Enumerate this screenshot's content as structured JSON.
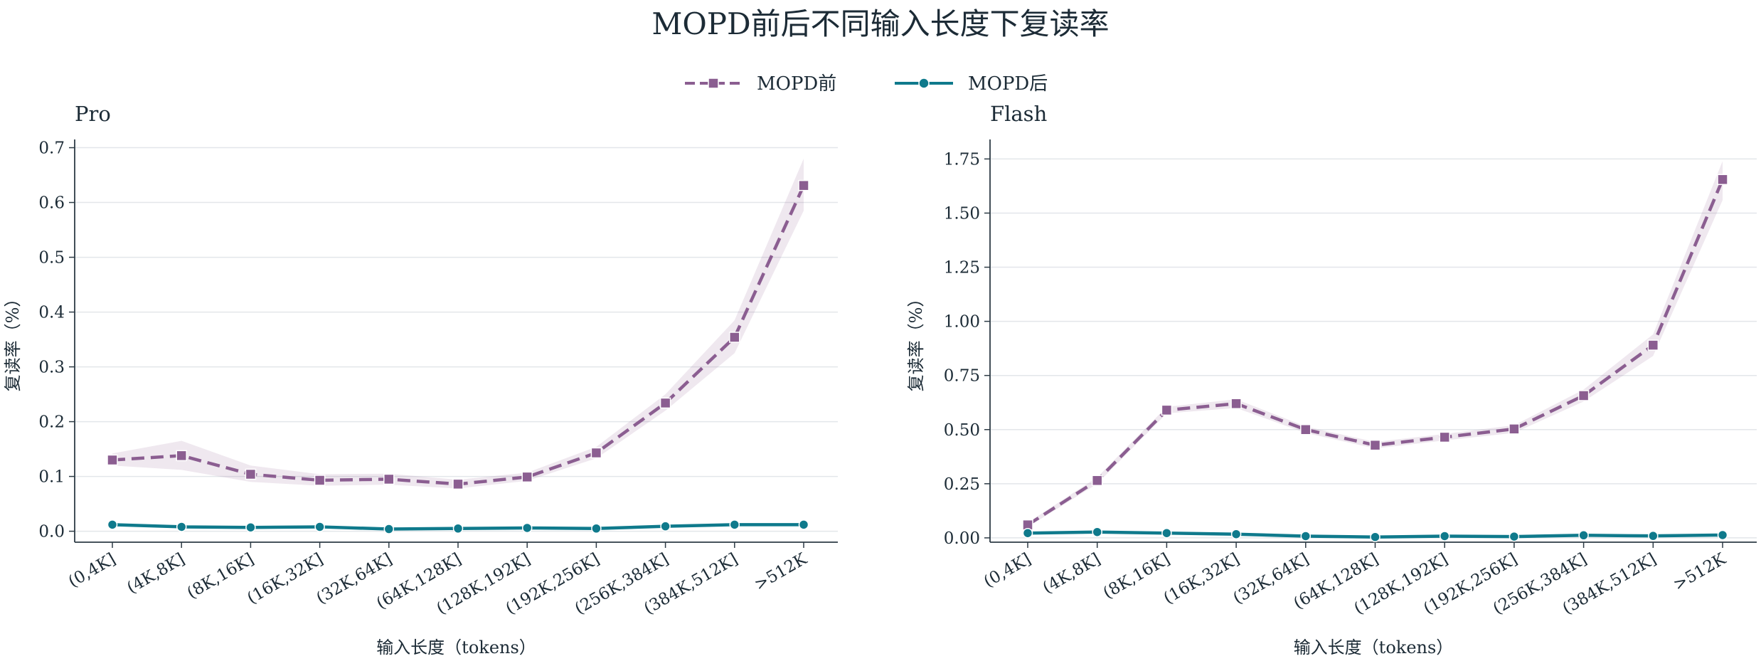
{
  "title": "MOPD前后不同输入长度下复读率",
  "legend": [
    {
      "label": "MOPD前",
      "color": "#8b5e91",
      "marker": "square",
      "dash": true
    },
    {
      "label": "MOPD后",
      "color": "#0f7a8c",
      "marker": "circle",
      "dash": false
    }
  ],
  "chart_data": [
    {
      "type": "line",
      "title": "Pro",
      "xlabel": "输入长度（tokens）",
      "ylabel": "复读率（%）",
      "categories": [
        "(0,4K]",
        "(4K,8K]",
        "(8K,16K]",
        "(16K,32K]",
        "(32K,64K]",
        "(64K,128K]",
        "(128K,192K]",
        "(192K,256K]",
        "(256K,384K]",
        "(384K,512K]",
        ">512K"
      ],
      "ylim": [
        -0.02,
        0.715
      ],
      "yticks": [
        0.0,
        0.1,
        0.2,
        0.3,
        0.4,
        0.5,
        0.6,
        0.7
      ],
      "ytick_labels": [
        "0.0",
        "0.1",
        "0.2",
        "0.3",
        "0.4",
        "0.5",
        "0.6",
        "0.7"
      ],
      "grid": "horizontal",
      "series": [
        {
          "name": "MOPD前",
          "values": [
            0.13,
            0.138,
            0.104,
            0.093,
            0.095,
            0.086,
            0.099,
            0.143,
            0.234,
            0.354,
            0.631
          ],
          "band_low": [
            0.12,
            0.112,
            0.09,
            0.083,
            0.085,
            0.078,
            0.092,
            0.133,
            0.22,
            0.325,
            0.585
          ],
          "band_high": [
            0.142,
            0.165,
            0.12,
            0.104,
            0.105,
            0.094,
            0.107,
            0.154,
            0.25,
            0.385,
            0.68
          ]
        },
        {
          "name": "MOPD后",
          "values": [
            0.012,
            0.008,
            0.007,
            0.008,
            0.004,
            0.005,
            0.006,
            0.005,
            0.009,
            0.012,
            0.012
          ]
        }
      ]
    },
    {
      "type": "line",
      "title": "Flash",
      "xlabel": "输入长度（tokens）",
      "ylabel": "复读率（%）",
      "categories": [
        "(0,4K]",
        "(4K,8K]",
        "(8K,16K]",
        "(16K,32K]",
        "(32K,64K]",
        "(64K,128K]",
        "(128K,192K]",
        "(192K,256K]",
        "(256K,384K]",
        "(384K,512K]",
        ">512K"
      ],
      "ylim": [
        -0.02,
        1.84
      ],
      "yticks": [
        0.0,
        0.25,
        0.5,
        0.75,
        1.0,
        1.25,
        1.5,
        1.75
      ],
      "ytick_labels": [
        "0.00",
        "0.25",
        "0.50",
        "0.75",
        "1.00",
        "1.25",
        "1.50",
        "1.75"
      ],
      "grid": "horizontal",
      "series": [
        {
          "name": "MOPD前",
          "values": [
            0.06,
            0.265,
            0.59,
            0.62,
            0.5,
            0.428,
            0.465,
            0.503,
            0.657,
            0.89,
            1.655
          ],
          "band_low": [
            0.05,
            0.25,
            0.575,
            0.6,
            0.485,
            0.413,
            0.45,
            0.485,
            0.63,
            0.84,
            1.56
          ],
          "band_high": [
            0.07,
            0.28,
            0.605,
            0.64,
            0.515,
            0.443,
            0.48,
            0.52,
            0.685,
            0.94,
            1.74
          ]
        },
        {
          "name": "MOPD后",
          "values": [
            0.022,
            0.027,
            0.022,
            0.017,
            0.008,
            0.004,
            0.008,
            0.006,
            0.012,
            0.009,
            0.013
          ]
        }
      ]
    }
  ]
}
